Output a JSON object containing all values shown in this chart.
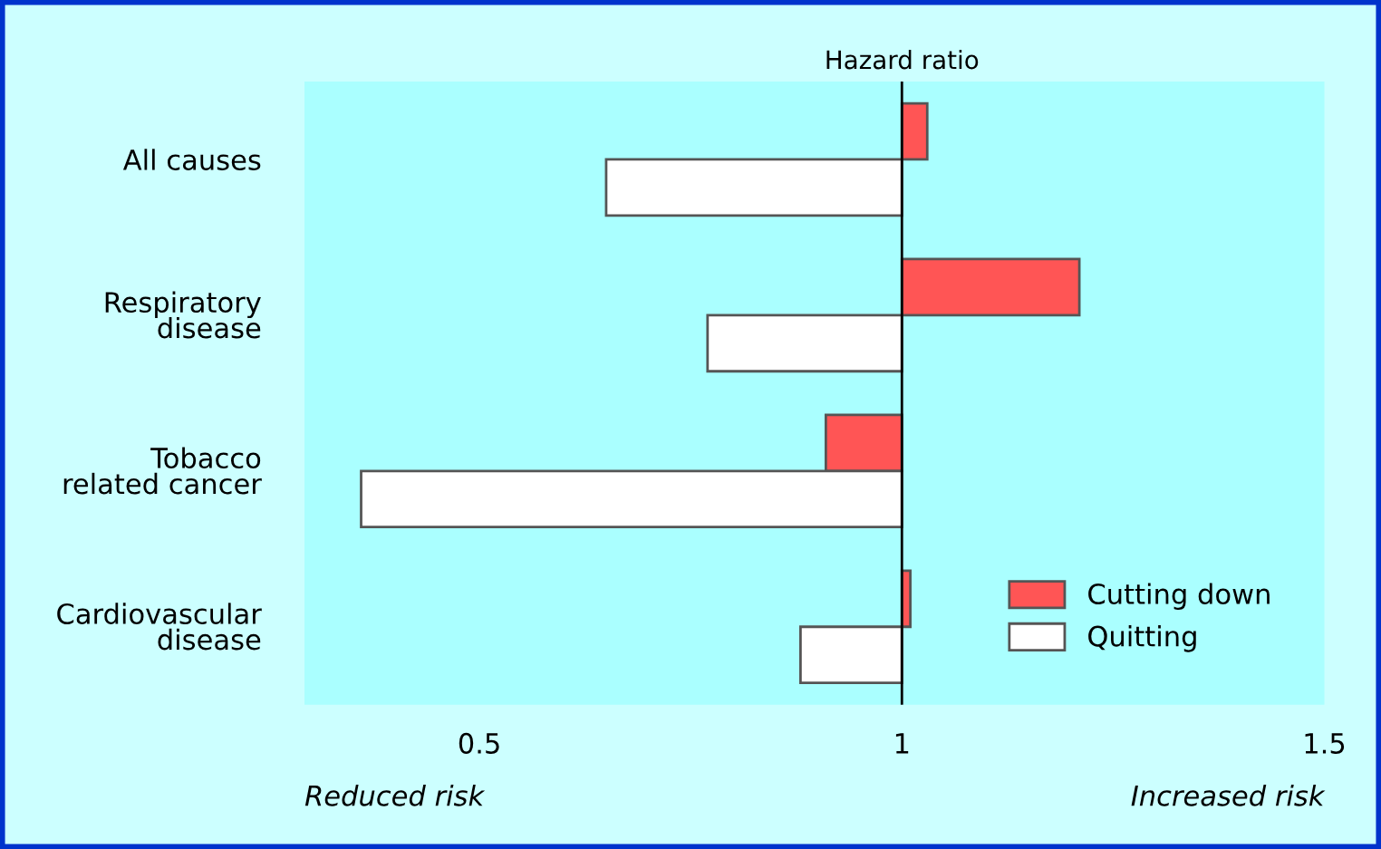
{
  "chart_data": {
    "type": "bar",
    "orientation": "horizontal",
    "title": "Hazard ratio",
    "categories": [
      "All causes",
      "Respiratory\ndisease",
      "Tobacco\nrelated cancer",
      "Cardiovascular\ndisease"
    ],
    "series": [
      {
        "name": "Cutting down",
        "color": "#ff5555",
        "base": [
          1,
          1,
          1,
          1
        ],
        "values": [
          0.03,
          0.21,
          -0.09,
          0.01
        ]
      },
      {
        "name": "Quitting",
        "color": "#ffffff",
        "base": [
          1,
          1,
          1,
          1
        ],
        "values": [
          -0.35,
          -0.23,
          -0.64,
          -0.12
        ]
      }
    ],
    "xlim": [
      0.293,
      1.5
    ],
    "xticks": [
      0.5,
      1,
      1.5
    ],
    "ref_lines": [
      {
        "axis": "x",
        "value": 1,
        "color": "#000000"
      }
    ],
    "annotations": [
      "Reduced risk",
      "Increased risk"
    ],
    "legend": "bottom right",
    "grid": false
  }
}
